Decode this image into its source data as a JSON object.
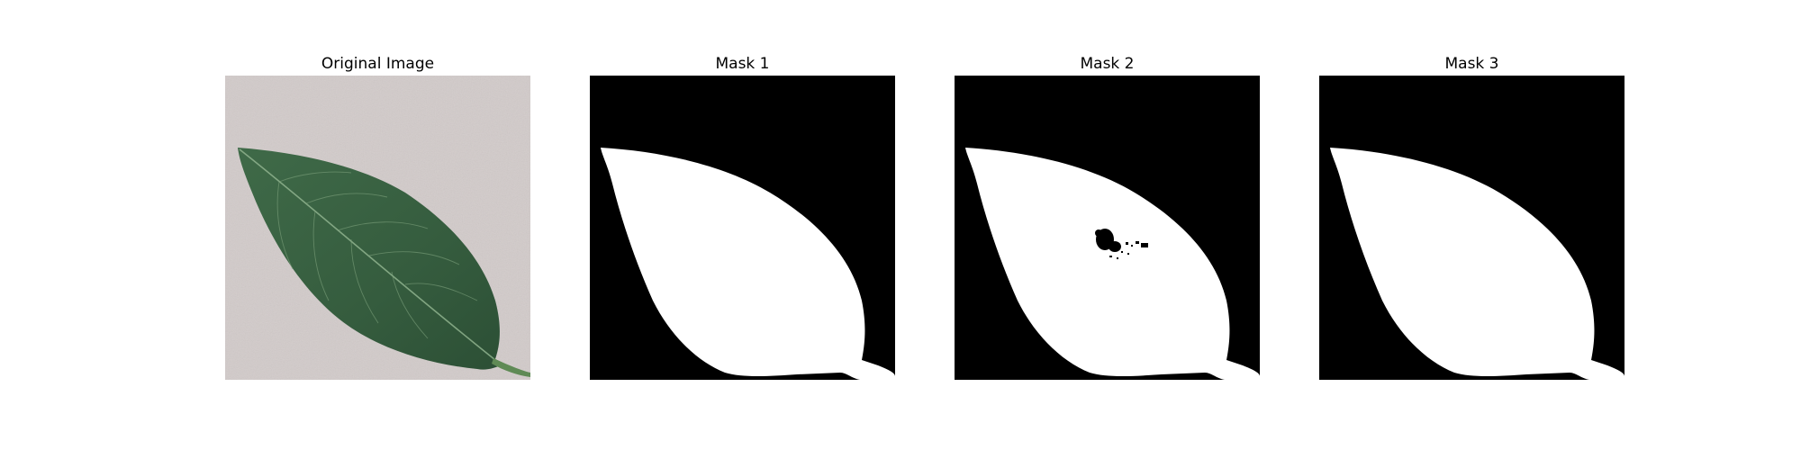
{
  "figure": {
    "panels": [
      {
        "title": "Original Image",
        "kind": "photo"
      },
      {
        "title": "Mask 1",
        "kind": "mask"
      },
      {
        "title": "Mask 2",
        "kind": "mask-with-hole"
      },
      {
        "title": "Mask 3",
        "kind": "mask"
      }
    ],
    "colors": {
      "background": "#d2cbca",
      "leaf": "#3d6545",
      "leaf_dark": "#2f5036",
      "vein": "#8fb38e",
      "mask_foreground": "#ffffff",
      "mask_background": "#000000"
    }
  }
}
